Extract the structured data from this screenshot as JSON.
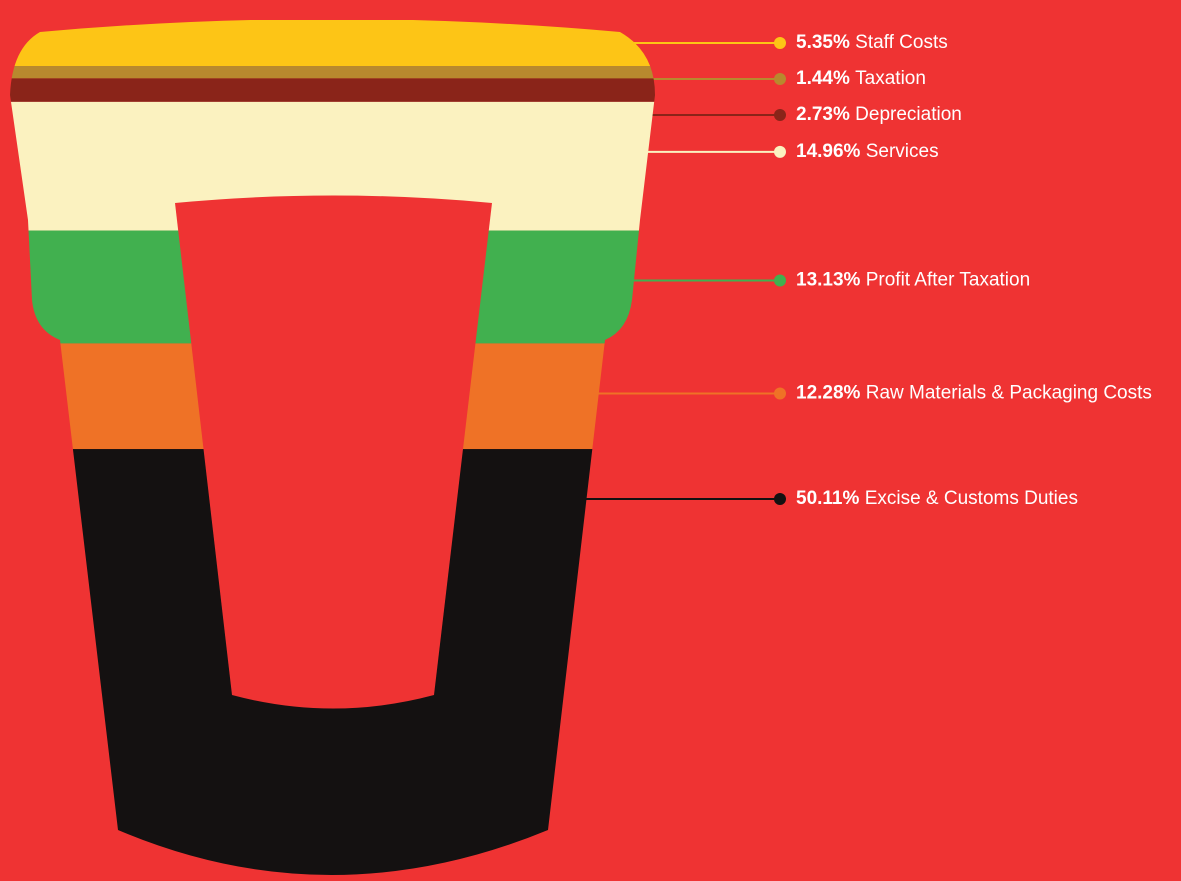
{
  "chart_data": {
    "type": "cup",
    "categories": [
      "Staff Costs",
      "Taxation",
      "Depreciation",
      "Services",
      "Profit After Taxation",
      "Raw Materials & Packaging Costs",
      "Excise & Customs Duties"
    ],
    "values": [
      5.35,
      1.44,
      2.73,
      14.96,
      13.13,
      12.28,
      50.11
    ],
    "value_labels": [
      "5.35%",
      "1.44%",
      "2.73%",
      "14.96%",
      "13.13%",
      "12.28%",
      "50.11%"
    ],
    "colors": [
      "#fdc516",
      "#b8892e",
      "#8a2419",
      "#fbf2c0",
      "#41b04f",
      "#ef7226",
      "#141111"
    ]
  }
}
